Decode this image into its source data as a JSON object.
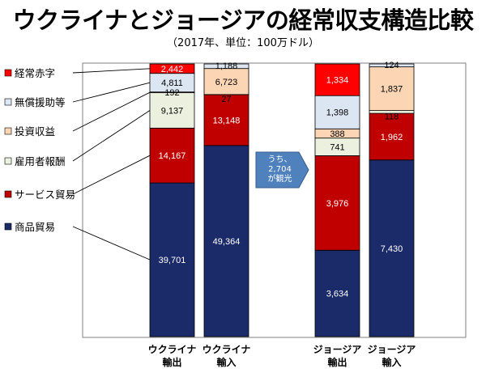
{
  "title": "ウクライナとジョージアの経常収支構造比較",
  "subtitle": "（2017年、単位：100万ドル）",
  "chart_data": {
    "type": "bar",
    "stacked": true,
    "title": "ウクライナとジョージアの経常収支構造比較",
    "subtitle": "（2017年、単位：100万ドル）",
    "categories": [
      [
        "ウクライナ",
        "輸出"
      ],
      [
        "ウクライナ",
        "輸入"
      ],
      [
        "ジョージア",
        "輸出"
      ],
      [
        "ジョージア",
        "輸入"
      ]
    ],
    "series": [
      {
        "name": "商品貿易",
        "color": "#1b2a68",
        "label_color": "#ffffff",
        "values": [
          39701,
          49364,
          3634,
          7430
        ]
      },
      {
        "name": "サービス貿易",
        "color": "#c00000",
        "label_color": "#ffffff",
        "values": [
          14167,
          13148,
          3976,
          1962
        ]
      },
      {
        "name": "雇用者報酬",
        "color": "#ebf1de",
        "label_color": "#000000",
        "values": [
          9137,
          27,
          741,
          118
        ]
      },
      {
        "name": "投資収益",
        "color": "#fcd5b5",
        "label_color": "#000000",
        "values": [
          192,
          6723,
          388,
          1837
        ]
      },
      {
        "name": "無償援助等",
        "color": "#dce6f2",
        "label_color": "#000000",
        "values": [
          4811,
          1188,
          1398,
          124
        ]
      },
      {
        "name": "経常赤字",
        "color": "#ff0000",
        "label_color": "#ffffff",
        "values": [
          2442,
          null,
          1334,
          null
        ]
      }
    ],
    "legend": [
      "経常赤字",
      "無償援助等",
      "投資収益",
      "雇用者報酬",
      "サービス貿易",
      "商品貿易"
    ],
    "legend_position": "left",
    "annotations": [
      {
        "text_lines": [
          "うち、",
          "2,704",
          "が観光"
        ],
        "target": [
          "ジョージア",
          "輸出"
        ],
        "series": "サービス貿易"
      }
    ],
    "xlabel": "",
    "ylabel": ""
  }
}
